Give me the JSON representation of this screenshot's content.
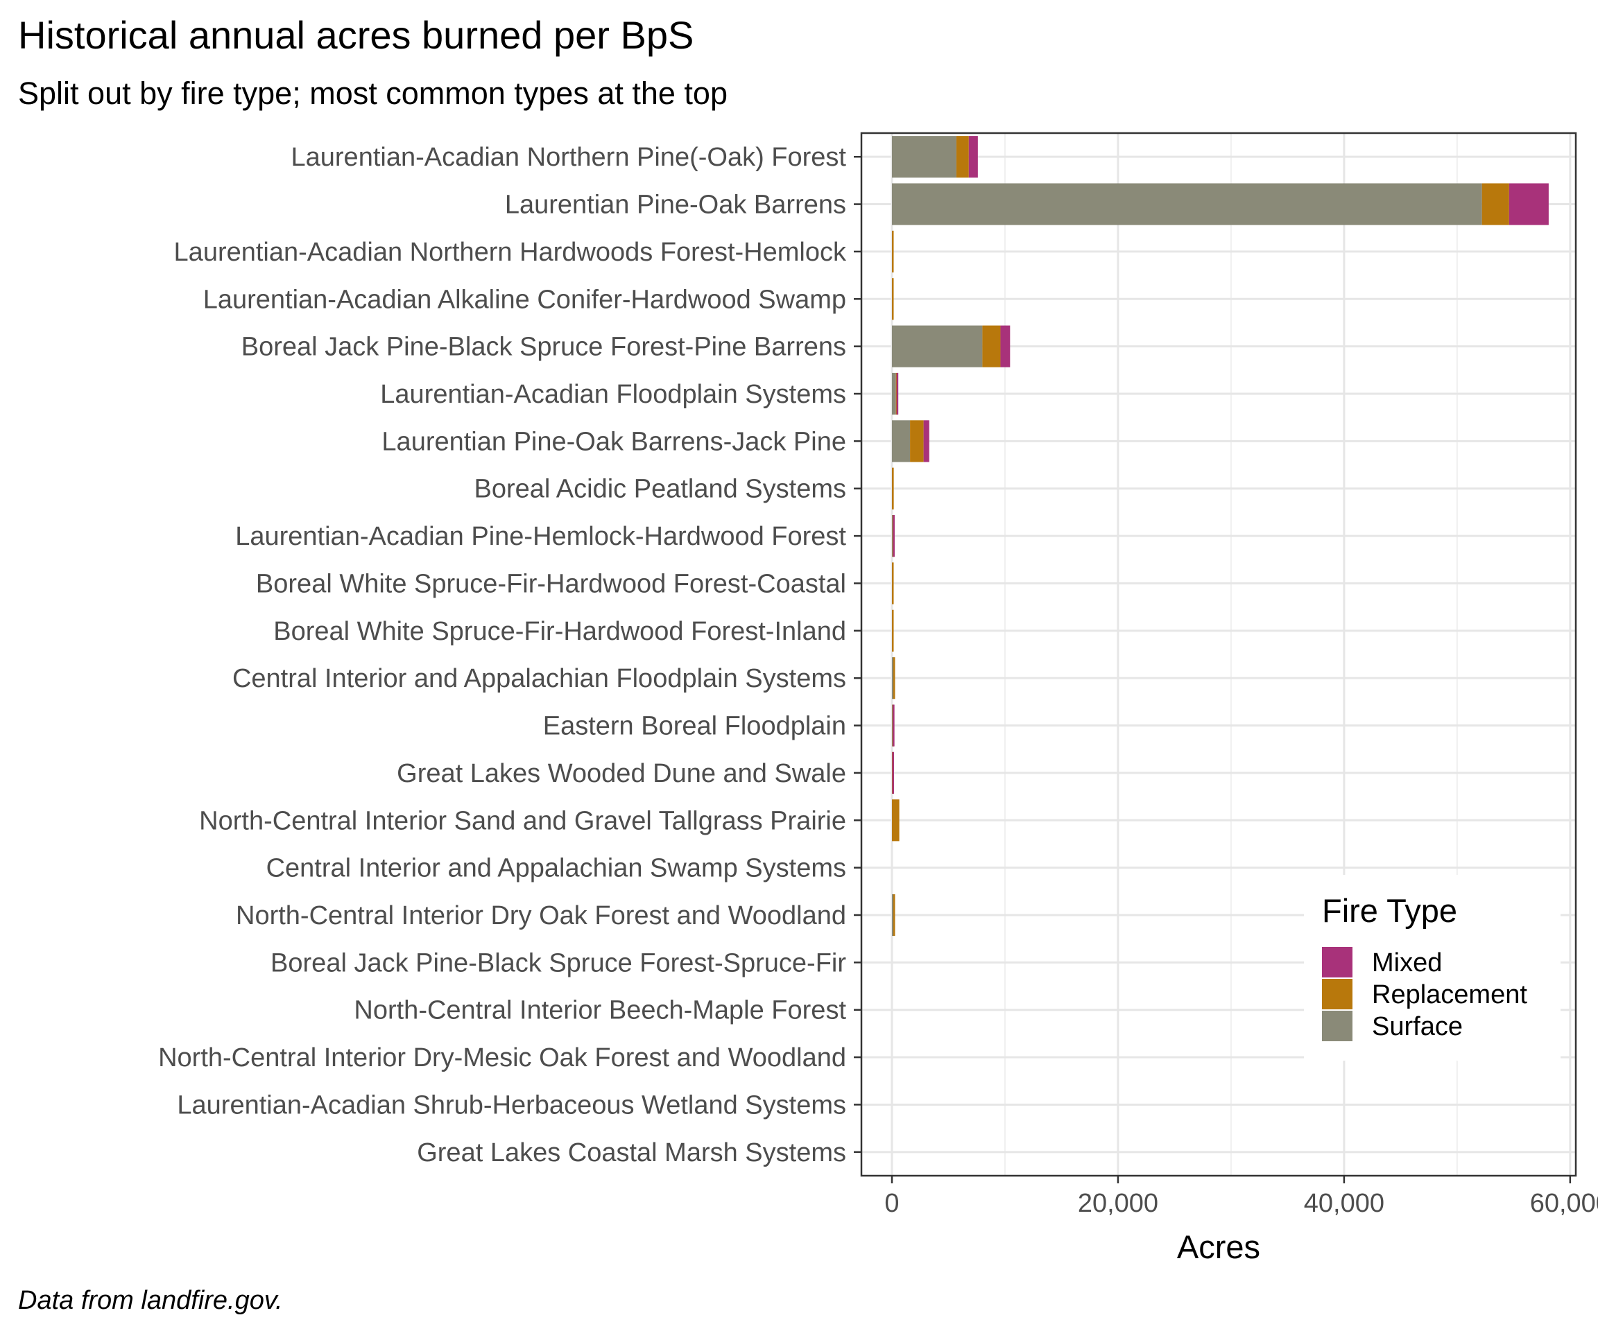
{
  "chart_data": {
    "type": "bar",
    "orientation": "horizontal",
    "stacked": true,
    "title": "Historical annual acres burned per BpS",
    "subtitle": "Split out by fire type; most common types at the top",
    "caption": "Data from landfire.gov.",
    "xlabel": "Acres",
    "ylabel": "",
    "xlim": [
      -2700,
      60500
    ],
    "xticks": [
      0,
      20000,
      40000,
      60000
    ],
    "xtick_labels": [
      "0",
      "20,000",
      "40,000",
      "60,000"
    ],
    "grid": true,
    "legend_position": "bottom-right (inside plot)",
    "legend_title": "Fire Type",
    "categories": [
      "Laurentian-Acadian Northern Pine(-Oak) Forest",
      "Laurentian Pine-Oak Barrens",
      "Laurentian-Acadian Northern Hardwoods Forest-Hemlock",
      "Laurentian-Acadian Alkaline Conifer-Hardwood Swamp",
      "Boreal Jack Pine-Black Spruce Forest-Pine Barrens",
      "Laurentian-Acadian Floodplain Systems",
      "Laurentian Pine-Oak Barrens-Jack Pine",
      "Boreal Acidic Peatland Systems",
      "Laurentian-Acadian Pine-Hemlock-Hardwood Forest",
      "Boreal White Spruce-Fir-Hardwood Forest-Coastal",
      "Boreal White Spruce-Fir-Hardwood Forest-Inland",
      "Central Interior and Appalachian Floodplain Systems",
      "Eastern Boreal Floodplain",
      "Great Lakes Wooded Dune and Swale",
      "North-Central Interior Sand and Gravel Tallgrass Prairie",
      "Central Interior and Appalachian Swamp Systems",
      "North-Central Interior Dry Oak Forest and Woodland",
      "Boreal Jack Pine-Black Spruce Forest-Spruce-Fir",
      "North-Central Interior Beech-Maple Forest",
      "North-Central Interior Dry-Mesic Oak Forest and Woodland",
      "Laurentian-Acadian Shrub-Herbaceous Wetland Systems",
      "Great Lakes Coastal Marsh Systems"
    ],
    "series": [
      {
        "name": "Surface",
        "color": "#8a8a78",
        "values": [
          5700,
          52200,
          0,
          0,
          8000,
          350,
          1600,
          0,
          50,
          0,
          0,
          120,
          40,
          0,
          0,
          0,
          120,
          0,
          0,
          0,
          0,
          0
        ]
      },
      {
        "name": "Replacement",
        "color": "#b8780c",
        "values": [
          1100,
          2400,
          130,
          110,
          1600,
          60,
          1200,
          160,
          40,
          90,
          80,
          40,
          30,
          30,
          650,
          0,
          20,
          0,
          0,
          0,
          0,
          0
        ]
      },
      {
        "name": "Mixed",
        "color": "#a8327a",
        "values": [
          800,
          3500,
          0,
          0,
          850,
          100,
          500,
          0,
          30,
          0,
          0,
          0,
          30,
          80,
          0,
          0,
          0,
          0,
          0,
          0,
          0,
          0
        ]
      }
    ],
    "legend_order": [
      "Mixed",
      "Replacement",
      "Surface"
    ]
  }
}
